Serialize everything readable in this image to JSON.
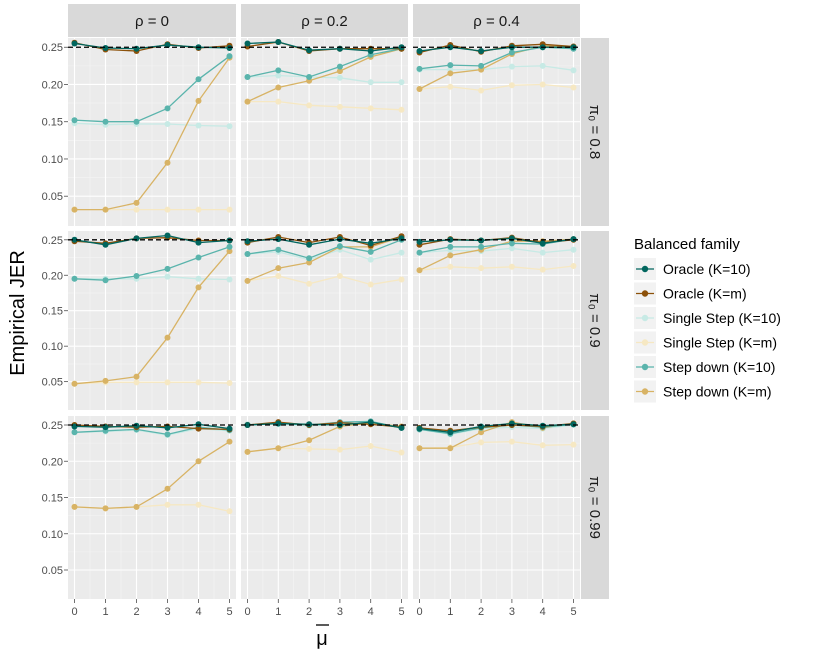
{
  "chart_data": {
    "type": "line",
    "ylabel": "Empirical JER",
    "xlabel": "μ",
    "x": [
      0,
      1,
      2,
      3,
      4,
      5
    ],
    "x_ticks": [
      "0",
      "1",
      "2",
      "3",
      "4",
      "5"
    ],
    "ylim": [
      0.01,
      0.265
    ],
    "y_ticks": [
      "0.05",
      "0.10",
      "0.15",
      "0.20",
      "0.25"
    ],
    "y_tick_values": [
      0.05,
      0.1,
      0.15,
      0.2,
      0.25
    ],
    "reference_line": 0.25,
    "col_labels": [
      "ρ = 0",
      "ρ = 0.2",
      "ρ = 0.4"
    ],
    "row_labels": [
      "π₀ = 0.8",
      "π₀ = 0.9",
      "π₀ = 0.99"
    ],
    "legend": {
      "title": "Balanced family",
      "entries": [
        {
          "name": "Oracle (K=10)",
          "color": "#01665E"
        },
        {
          "name": "Oracle (K=m)",
          "color": "#8C510A"
        },
        {
          "name": "Single Step (K=10)",
          "color": "#C7EAE5"
        },
        {
          "name": "Single Step (K=m)",
          "color": "#F6E8C3"
        },
        {
          "name": "Step down (K=10)",
          "color": "#5AB4AC"
        },
        {
          "name": "Step down (K=m)",
          "color": "#D8B365"
        }
      ]
    },
    "panels": [
      {
        "row": 0,
        "col": 0,
        "series": [
          [
            0.255,
            0.249,
            0.248,
            0.253,
            0.25,
            0.249
          ],
          [
            0.256,
            0.247,
            0.245,
            0.254,
            0.249,
            0.252
          ],
          [
            0.148,
            0.146,
            0.147,
            0.147,
            0.145,
            0.144
          ],
          [
            0.032,
            0.032,
            0.032,
            0.032,
            0.032,
            0.032
          ],
          [
            0.152,
            0.15,
            0.15,
            0.168,
            0.207,
            0.238
          ],
          [
            0.032,
            0.032,
            0.041,
            0.095,
            0.178,
            0.236
          ]
        ]
      },
      {
        "row": 0,
        "col": 1,
        "series": [
          [
            0.255,
            0.257,
            0.246,
            0.248,
            0.245,
            0.25
          ],
          [
            0.251,
            0.257,
            0.245,
            0.248,
            0.248,
            0.248
          ],
          [
            0.21,
            0.212,
            0.21,
            0.209,
            0.203,
            0.203
          ],
          [
            0.177,
            0.177,
            0.172,
            0.17,
            0.168,
            0.166
          ],
          [
            0.21,
            0.219,
            0.21,
            0.224,
            0.24,
            0.248
          ],
          [
            0.177,
            0.196,
            0.205,
            0.218,
            0.237,
            0.248
          ]
        ]
      },
      {
        "row": 0,
        "col": 2,
        "series": [
          [
            0.245,
            0.25,
            0.245,
            0.25,
            0.25,
            0.25
          ],
          [
            0.243,
            0.253,
            0.244,
            0.252,
            0.254,
            0.251
          ],
          [
            0.22,
            0.22,
            0.22,
            0.224,
            0.225,
            0.219
          ],
          [
            0.194,
            0.197,
            0.192,
            0.199,
            0.2,
            0.196
          ],
          [
            0.221,
            0.226,
            0.225,
            0.243,
            0.25,
            0.248
          ],
          [
            0.194,
            0.215,
            0.22,
            0.241,
            0.252,
            0.25
          ]
        ]
      },
      {
        "row": 1,
        "col": 0,
        "series": [
          [
            0.25,
            0.243,
            0.252,
            0.256,
            0.246,
            0.249
          ],
          [
            0.248,
            0.245,
            0.252,
            0.253,
            0.249,
            0.249
          ],
          [
            0.195,
            0.195,
            0.195,
            0.198,
            0.195,
            0.194
          ],
          [
            0.047,
            0.049,
            0.049,
            0.049,
            0.049,
            0.048
          ],
          [
            0.195,
            0.193,
            0.199,
            0.209,
            0.225,
            0.24
          ],
          [
            0.047,
            0.051,
            0.057,
            0.112,
            0.183,
            0.234
          ]
        ]
      },
      {
        "row": 1,
        "col": 1,
        "series": [
          [
            0.248,
            0.251,
            0.243,
            0.251,
            0.245,
            0.252
          ],
          [
            0.246,
            0.254,
            0.246,
            0.254,
            0.242,
            0.255
          ],
          [
            0.23,
            0.233,
            0.222,
            0.236,
            0.222,
            0.232
          ],
          [
            0.192,
            0.199,
            0.188,
            0.199,
            0.187,
            0.194
          ],
          [
            0.23,
            0.236,
            0.224,
            0.241,
            0.233,
            0.25
          ],
          [
            0.192,
            0.21,
            0.218,
            0.24,
            0.24,
            0.254
          ]
        ]
      },
      {
        "row": 1,
        "col": 2,
        "series": [
          [
            0.247,
            0.25,
            0.249,
            0.252,
            0.245,
            0.251
          ],
          [
            0.243,
            0.251,
            0.249,
            0.253,
            0.246,
            0.25
          ],
          [
            0.232,
            0.235,
            0.234,
            0.238,
            0.232,
            0.236
          ],
          [
            0.207,
            0.212,
            0.21,
            0.212,
            0.208,
            0.213
          ],
          [
            0.232,
            0.24,
            0.24,
            0.245,
            0.244,
            0.251
          ],
          [
            0.207,
            0.228,
            0.236,
            0.248,
            0.248,
            0.251
          ]
        ]
      },
      {
        "row": 2,
        "col": 0,
        "series": [
          [
            0.248,
            0.247,
            0.249,
            0.246,
            0.251,
            0.245
          ],
          [
            0.25,
            0.248,
            0.247,
            0.248,
            0.245,
            0.244
          ],
          [
            0.24,
            0.241,
            0.243,
            0.236,
            0.245,
            0.242
          ],
          [
            0.137,
            0.135,
            0.137,
            0.14,
            0.14,
            0.131
          ],
          [
            0.24,
            0.242,
            0.244,
            0.237,
            0.247,
            0.243
          ],
          [
            0.137,
            0.135,
            0.137,
            0.162,
            0.2,
            0.227
          ]
        ]
      },
      {
        "row": 2,
        "col": 1,
        "series": [
          [
            0.25,
            0.252,
            0.251,
            0.25,
            0.254,
            0.246
          ],
          [
            0.25,
            0.254,
            0.25,
            0.253,
            0.251,
            0.247
          ],
          [
            0.251,
            0.251,
            0.249,
            0.251,
            0.253,
            0.246
          ],
          [
            0.213,
            0.218,
            0.217,
            0.216,
            0.221,
            0.212
          ],
          [
            0.25,
            0.252,
            0.25,
            0.254,
            0.255,
            0.246
          ],
          [
            0.213,
            0.218,
            0.229,
            0.248,
            0.253,
            0.248
          ]
        ]
      },
      {
        "row": 2,
        "col": 2,
        "series": [
          [
            0.245,
            0.24,
            0.248,
            0.252,
            0.249,
            0.251
          ],
          [
            0.246,
            0.242,
            0.247,
            0.25,
            0.248,
            0.252
          ],
          [
            0.244,
            0.237,
            0.245,
            0.247,
            0.245,
            0.25
          ],
          [
            0.218,
            0.219,
            0.226,
            0.227,
            0.222,
            0.223
          ],
          [
            0.244,
            0.238,
            0.246,
            0.25,
            0.247,
            0.251
          ],
          [
            0.218,
            0.218,
            0.24,
            0.254,
            0.246,
            0.252
          ]
        ]
      }
    ]
  }
}
